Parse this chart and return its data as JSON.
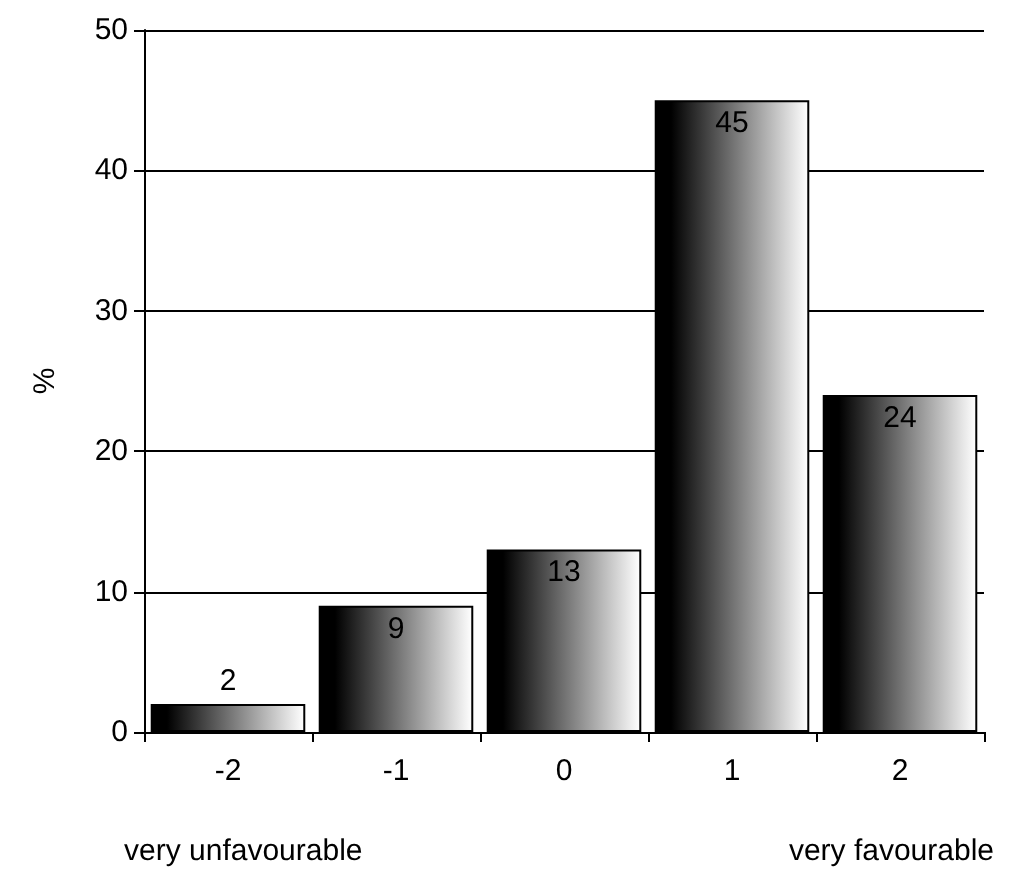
{
  "chart_data": {
    "type": "bar",
    "ylabel": "%",
    "categories": [
      "-2",
      "-1",
      "0",
      "1",
      "2"
    ],
    "values": [
      2,
      9,
      13,
      45,
      24
    ],
    "color": "#000000",
    "data_labels": true,
    "ylim": [
      0,
      50
    ],
    "yticks": [
      0,
      10,
      20,
      30,
      40,
      50
    ],
    "grid": "y",
    "annotations": [
      "very unfavourable",
      "very favourable"
    ]
  }
}
